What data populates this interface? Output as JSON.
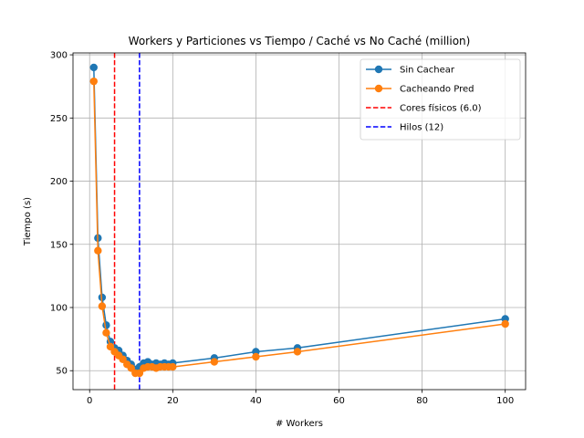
{
  "chart_data": {
    "type": "line",
    "title": "Workers y Particiones vs Tiempo / Caché vs No Caché (million)",
    "xlabel": "# Workers",
    "ylabel": "Tiempo (s)",
    "xlim": [
      -4,
      104.9
    ],
    "ylim": [
      35,
      301.5
    ],
    "xticks": [
      0,
      20,
      40,
      60,
      80,
      100
    ],
    "yticks": [
      50,
      100,
      150,
      200,
      250,
      300
    ],
    "grid": true,
    "legend_position": "top-right",
    "series": [
      {
        "name": "Sin Cachear",
        "color": "#1f77b4",
        "x": [
          1,
          2,
          3,
          4,
          5,
          6,
          7,
          8,
          9,
          10,
          11,
          12,
          13,
          14,
          15,
          16,
          17,
          18,
          19,
          20,
          30,
          40,
          50,
          100
        ],
        "y": [
          290,
          155,
          108,
          86,
          73,
          68,
          66,
          62,
          58,
          55,
          51,
          53,
          56,
          57,
          55,
          56,
          55,
          56,
          55,
          56,
          60,
          65,
          68,
          91
        ]
      },
      {
        "name": "Cacheando Pred",
        "color": "#ff7f0e",
        "x": [
          1,
          2,
          3,
          4,
          5,
          6,
          7,
          8,
          9,
          10,
          11,
          12,
          13,
          14,
          15,
          16,
          17,
          18,
          19,
          20,
          30,
          40,
          50,
          100
        ],
        "y": [
          279,
          145,
          101,
          80,
          69,
          65,
          62,
          59,
          55,
          52,
          48,
          48,
          52,
          53,
          53,
          52,
          53,
          53,
          53,
          53,
          57,
          61,
          65,
          87
        ]
      }
    ],
    "vlines": [
      {
        "name": "Cores físicos (6.0)",
        "x": 6,
        "color": "#ff0000",
        "style": "dashed"
      },
      {
        "name": "Hilos (12)",
        "x": 12,
        "color": "#0000ff",
        "style": "dashed"
      }
    ]
  }
}
